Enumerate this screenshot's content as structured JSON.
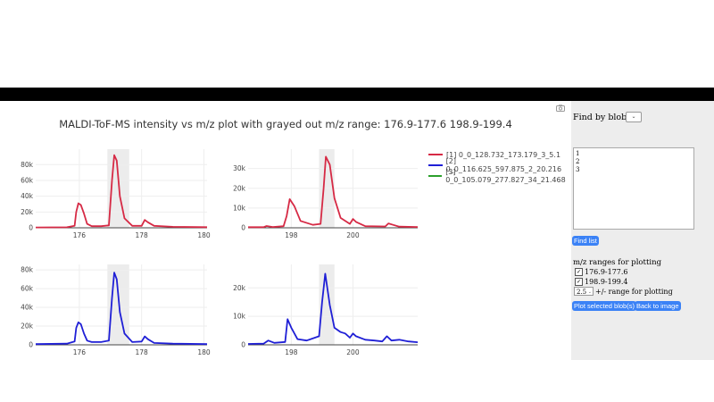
{
  "title": "MALDI-ToF-MS intensity vs m/z plot with grayed out m/z range: 176.9-177.6 198.9-199.4",
  "legend": [
    {
      "label": "[1] 0_0_128.732_173.179_3_5.1",
      "color": "#d62a45"
    },
    {
      "label": "[2] 0_0_116.625_597.875_2_20.216",
      "color": "#1f1fd6"
    },
    {
      "label": "[3] 0_0_105.079_277.827_34_21.468",
      "color": "#2ca02c"
    }
  ],
  "sidebar": {
    "find_label": "Find by blob ID",
    "blob_select_value": "",
    "blob_list": "1\n2\n3",
    "find_list_button": "Find list",
    "ranges_title": "m/z ranges for plotting",
    "ranges": [
      {
        "label": "176.9-177.6",
        "checked": true
      },
      {
        "label": "198.9-199.4",
        "checked": true
      }
    ],
    "pm_value": "2.5",
    "pm_label": "+/- range for plotting",
    "plot_button": "Plot selected blob(s)",
    "back_button": "Back to image"
  },
  "chart_data": [
    {
      "type": "line",
      "series_ref": 0,
      "xlim": [
        174.6,
        180.1
      ],
      "ylim": [
        0,
        95000
      ],
      "yticks": [
        0,
        20000,
        40000,
        60000,
        80000
      ],
      "ytick_labels": [
        "0",
        "20k",
        "40k",
        "60k",
        "80k"
      ],
      "xticks": [
        176,
        178,
        180
      ],
      "xtick_labels": [
        "176",
        "178",
        "180"
      ],
      "shade": [
        176.9,
        177.6
      ],
      "x": [
        174.6,
        175.6,
        175.85,
        175.9,
        175.97,
        176.05,
        176.15,
        176.25,
        176.4,
        176.7,
        176.95,
        177.05,
        177.12,
        177.2,
        177.3,
        177.45,
        177.7,
        178.0,
        178.1,
        178.2,
        178.4,
        179.0,
        180.1
      ],
      "y": [
        500,
        700,
        2500,
        20000,
        31000,
        29000,
        18000,
        5000,
        2000,
        2000,
        3000,
        60000,
        92000,
        85000,
        40000,
        12000,
        2500,
        2500,
        10000,
        7000,
        2500,
        1200,
        800
      ]
    },
    {
      "type": "line",
      "series_ref": 0,
      "xlim": [
        196.6,
        202.1
      ],
      "ylim": [
        0,
        38000
      ],
      "yticks": [
        0,
        10000,
        20000,
        30000
      ],
      "ytick_labels": [
        "0",
        "10k",
        "20k",
        "30k"
      ],
      "xticks": [
        198,
        200
      ],
      "xtick_labels": [
        "198",
        "200"
      ],
      "shade": [
        198.9,
        199.4
      ],
      "x": [
        196.6,
        197.1,
        197.2,
        197.4,
        197.75,
        197.85,
        197.95,
        198.1,
        198.3,
        198.7,
        198.95,
        199.05,
        199.12,
        199.25,
        199.4,
        199.6,
        199.9,
        200.0,
        200.1,
        200.4,
        201.05,
        201.15,
        201.3,
        201.5,
        202.1
      ],
      "y": [
        300,
        300,
        900,
        400,
        800,
        6000,
        14500,
        11000,
        3500,
        1500,
        2000,
        20000,
        36000,
        32000,
        15000,
        5000,
        2000,
        4500,
        3000,
        800,
        700,
        2200,
        1500,
        600,
        400
      ]
    },
    {
      "type": "line",
      "series_ref": 1,
      "xlim": [
        174.6,
        180.1
      ],
      "ylim": [
        0,
        82000
      ],
      "yticks": [
        0,
        20000,
        40000,
        60000,
        80000
      ],
      "ytick_labels": [
        "0",
        "20k",
        "40k",
        "60k",
        "80k"
      ],
      "xticks": [
        176,
        178,
        180
      ],
      "xtick_labels": [
        "176",
        "178",
        "180"
      ],
      "shade": [
        176.9,
        177.6
      ],
      "x": [
        174.6,
        175.6,
        175.85,
        175.9,
        175.97,
        176.05,
        176.15,
        176.25,
        176.4,
        176.7,
        176.95,
        177.05,
        177.12,
        177.2,
        177.3,
        177.45,
        177.7,
        178.0,
        178.1,
        178.2,
        178.4,
        179.0,
        180.1
      ],
      "y": [
        800,
        1200,
        3500,
        18000,
        24000,
        22000,
        12000,
        4500,
        3000,
        3000,
        4500,
        50000,
        77000,
        70000,
        35000,
        12000,
        3000,
        3500,
        9000,
        6000,
        2000,
        1200,
        800
      ]
    },
    {
      "type": "line",
      "series_ref": 1,
      "xlim": [
        196.6,
        202.1
      ],
      "ylim": [
        0,
        27000
      ],
      "yticks": [
        0,
        10000,
        20000
      ],
      "ytick_labels": [
        "0",
        "10k",
        "20k"
      ],
      "xticks": [
        198,
        200
      ],
      "xtick_labels": [
        "198",
        "200"
      ],
      "shade": [
        198.9,
        199.4
      ],
      "x": [
        196.6,
        197.1,
        197.25,
        197.45,
        197.8,
        197.88,
        198.0,
        198.2,
        198.5,
        198.9,
        199.0,
        199.1,
        199.25,
        199.4,
        199.6,
        199.75,
        199.9,
        200.0,
        200.1,
        200.4,
        200.7,
        200.95,
        201.1,
        201.25,
        201.5,
        201.8,
        202.1
      ],
      "y": [
        300,
        400,
        1500,
        700,
        1000,
        9000,
        6000,
        2000,
        1500,
        3000,
        15000,
        25000,
        14000,
        6000,
        4500,
        4000,
        2500,
        4000,
        3000,
        1800,
        1500,
        1200,
        3000,
        1500,
        1800,
        1200,
        900
      ]
    }
  ]
}
